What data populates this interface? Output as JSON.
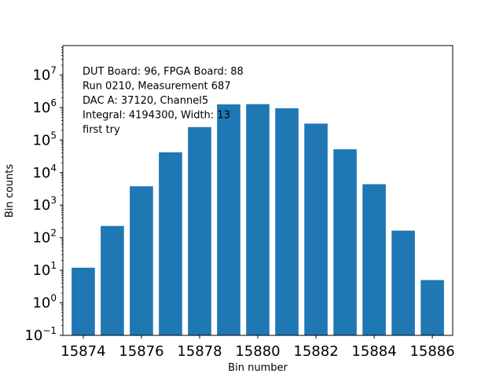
{
  "chart_data": {
    "type": "bar",
    "x": [
      15874,
      15875,
      15876,
      15877,
      15878,
      15879,
      15880,
      15881,
      15882,
      15883,
      15884,
      15885,
      15886
    ],
    "values": [
      12,
      230,
      3800,
      42000,
      250000,
      1250000,
      1270000,
      950000,
      320000,
      52000,
      4400,
      165,
      5
    ],
    "xlabel": "Bin number",
    "ylabel": "Bin counts",
    "xlim": [
      15873.3,
      15886.7
    ],
    "ylim": [
      0.1,
      80000000
    ],
    "yscale": "log",
    "x_ticks": [
      15874,
      15876,
      15878,
      15880,
      15882,
      15884,
      15886
    ],
    "y_tick_exponents": [
      -1,
      0,
      1,
      2,
      3,
      4,
      5,
      6,
      7
    ],
    "bar_color": "#1f77b4",
    "grid": false,
    "annotations": [
      "DUT Board: 96, FPGA Board: 88",
      "Run 0210, Measurement 687",
      "DAC A: 37120, Channel5",
      "Integral: 4194300, Width: 13",
      "first try"
    ]
  }
}
